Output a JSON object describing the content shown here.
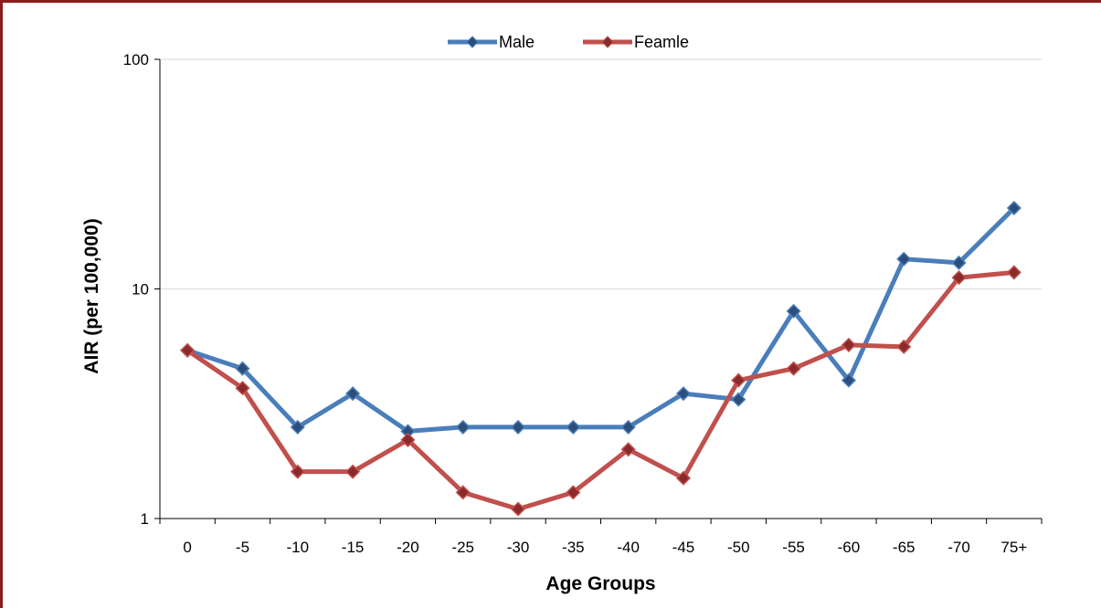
{
  "chart_data": {
    "type": "line",
    "xlabel": "Age Groups",
    "ylabel": "AIR (per 100,000)",
    "y_scale": "log",
    "ylim": [
      1,
      100
    ],
    "y_ticks": [
      "1",
      "10",
      "100"
    ],
    "grid": "horizontal",
    "legend_position": "top-center",
    "categories": [
      "0",
      "-5",
      "-10",
      "-15",
      "-20",
      "-25",
      "-30",
      "-35",
      "-40",
      "-45",
      "-50",
      "-55",
      "-60",
      "-65",
      "-70",
      "75+"
    ],
    "series": [
      {
        "name": "Male",
        "color": "#4a7ebb",
        "marker_color": "#2b4e7a",
        "values": [
          5.4,
          4.5,
          2.5,
          3.5,
          2.4,
          2.5,
          2.5,
          2.5,
          2.5,
          3.5,
          3.3,
          8.0,
          4.0,
          13.5,
          13.0,
          22.5
        ]
      },
      {
        "name": "Feamle",
        "color": "#c0504d",
        "marker_color": "#8b2a2a",
        "values": [
          5.4,
          3.7,
          1.6,
          1.6,
          2.2,
          1.3,
          1.1,
          1.3,
          2.0,
          1.5,
          4.0,
          4.5,
          5.7,
          5.6,
          11.2,
          11.8
        ]
      }
    ]
  }
}
